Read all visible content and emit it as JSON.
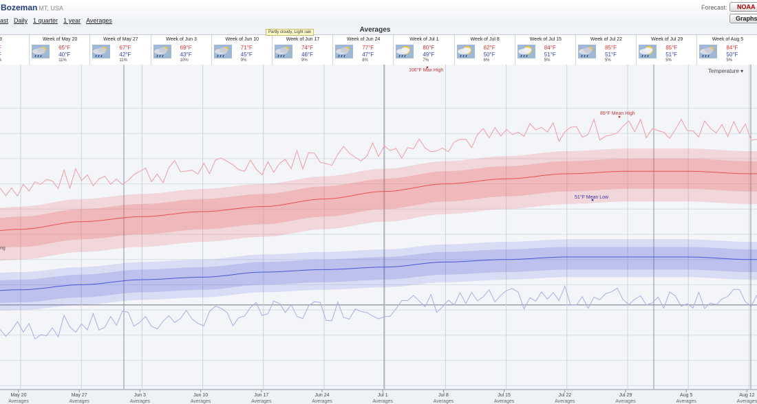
{
  "header": {
    "city": "Bozeman",
    "state": "MT, USA",
    "forecast_label": "Forecast:",
    "noaa_button": "NOAA",
    "graphs_button": "Graphs",
    "nav": [
      "ast",
      "Daily",
      "1 quarter",
      "1 year",
      "Averages"
    ]
  },
  "section_title": "Averages",
  "tooltip": "Partly cloudy; Light rain",
  "temperature_dropdown": "Temperature",
  "weeks": [
    {
      "title": "13",
      "high": "F",
      "low": "F",
      "precip": "%",
      "icon": "cloud-icon"
    },
    {
      "title": "Week of May 20",
      "high": "65°F",
      "low": "40°F",
      "precip": "11%",
      "icon": "partly-cloudy-rain-icon"
    },
    {
      "title": "Week of May 27",
      "high": "67°F",
      "low": "42°F",
      "precip": "11%",
      "icon": "partly-cloudy-rain-icon"
    },
    {
      "title": "Week of Jun 3",
      "high": "69°F",
      "low": "43°F",
      "precip": "10%",
      "icon": "partly-cloudy-rain-icon"
    },
    {
      "title": "Week of Jun 10",
      "high": "71°F",
      "low": "45°F",
      "precip": "9%",
      "icon": "partly-cloudy-rain-icon"
    },
    {
      "title": "Week of Jun 17",
      "high": "74°F",
      "low": "46°F",
      "precip": "9%",
      "icon": "partly-cloudy-rain-icon"
    },
    {
      "title": "Week of Jun 24",
      "high": "77°F",
      "low": "47°F",
      "precip": "8%",
      "icon": "partly-cloudy-rain-icon"
    },
    {
      "title": "Week of Jul 1",
      "high": "80°F",
      "low": "49°F",
      "precip": "7%",
      "icon": "mostly-sunny-rain-icon"
    },
    {
      "title": "Week of Jul 8",
      "high": "82°F",
      "low": "50°F",
      "precip": "6%",
      "icon": "mostly-sunny-rain-icon"
    },
    {
      "title": "Week of Jul 15",
      "high": "84°F",
      "low": "51°F",
      "precip": "5%",
      "icon": "mostly-sunny-rain-icon"
    },
    {
      "title": "Week of Jul 22",
      "high": "85°F",
      "low": "51°F",
      "precip": "5%",
      "icon": "partly-cloudy-rain-icon"
    },
    {
      "title": "Week of Jul 29",
      "high": "85°F",
      "low": "51°F",
      "precip": "5%",
      "icon": "mostly-sunny-rain-icon"
    },
    {
      "title": "Week of Aug 5",
      "high": "84°F",
      "low": "50°F",
      "precip": "5%",
      "icon": "partly-cloudy-rain-icon"
    }
  ],
  "chart_data": {
    "type": "area",
    "ylabel": "",
    "xlabel": "",
    "annotations": {
      "max_high": "106°F Max High",
      "mean_high": "85°F Mean High",
      "mean_low": "51°F Mean Low",
      "left_edge_label": "ng"
    },
    "x_ticks": [
      {
        "label": "May 20",
        "sub": "Averages"
      },
      {
        "label": "May 27",
        "sub": "Averages"
      },
      {
        "label": "Jun 3",
        "sub": "Averages"
      },
      {
        "label": "Jun 10",
        "sub": "Averages"
      },
      {
        "label": "Jun 17",
        "sub": "Averages"
      },
      {
        "label": "Jun 24",
        "sub": "Averages"
      },
      {
        "label": "Jul 1",
        "sub": "Averages"
      },
      {
        "label": "Jul 8",
        "sub": "Averages"
      },
      {
        "label": "Jul 15",
        "sub": "Averages"
      },
      {
        "label": "Jul 22",
        "sub": "Averages"
      },
      {
        "label": "Jul 29",
        "sub": "Averages"
      },
      {
        "label": "Aug 5",
        "sub": "Averages"
      },
      {
        "label": "Aug 12",
        "sub": "Averages"
      }
    ],
    "weekly": {
      "mean_high": [
        62,
        65,
        67,
        69,
        71,
        74,
        77,
        80,
        82,
        84,
        85,
        85,
        84
      ],
      "mean_low": [
        38,
        40,
        42,
        43,
        45,
        46,
        47,
        49,
        50,
        51,
        51,
        51,
        50
      ]
    },
    "colors": {
      "high": "#e85050",
      "low": "#4a55d8",
      "grid": "#d8dde5",
      "week_line": "#9aa2ae"
    }
  }
}
